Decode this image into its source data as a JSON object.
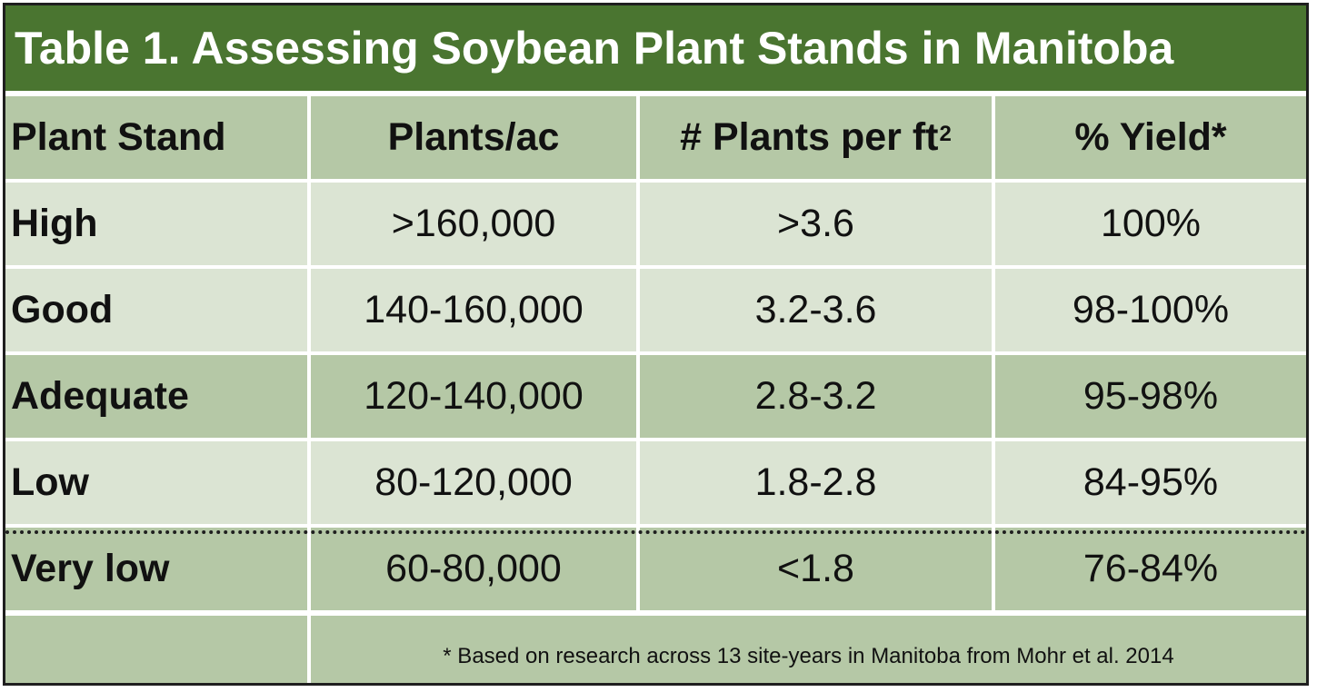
{
  "title": "Table 1. Assessing Soybean Plant Stands in Manitoba",
  "headers": {
    "plant_stand": "Plant Stand",
    "plants_ac": "Plants/ac",
    "plants_per_ft": "# Plants per ft",
    "plants_per_ft_sup": "2",
    "yield": "% Yield*"
  },
  "rows": [
    {
      "stand": "High",
      "plants_ac": ">160,000",
      "per_ft": ">3.6",
      "yield": "100%"
    },
    {
      "stand": "Good",
      "plants_ac": "140-160,000",
      "per_ft": "3.2-3.6",
      "yield": "98-100%"
    },
    {
      "stand": "Adequate",
      "plants_ac": "120-140,000",
      "per_ft": "2.8-3.2",
      "yield": "95-98%"
    },
    {
      "stand": "Low",
      "plants_ac": "80-120,000",
      "per_ft": "1.8-2.8",
      "yield": "84-95%"
    },
    {
      "stand": "Very low",
      "plants_ac": "60-80,000",
      "per_ft": "<1.8",
      "yield": "76-84%"
    }
  ],
  "footnote": "* Based on research across 13 site-years in Manitoba from Mohr et al. 2014",
  "colors": {
    "title_bg": "#4a7530",
    "row_dark": "#b5c8a6",
    "row_light": "#dbe4d3"
  }
}
